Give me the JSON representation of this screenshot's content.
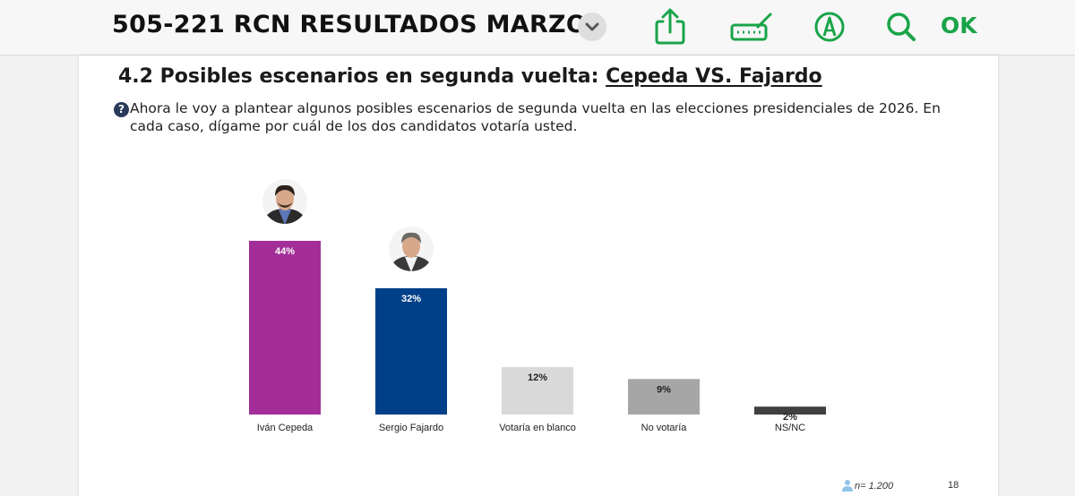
{
  "toolbar": {
    "title": "505-221 RCN RESULTADOS MARZO",
    "icons": [
      "chevron-down-icon",
      "share-icon",
      "keyboard-pencil-icon",
      "markup-pen-icon",
      "search-icon"
    ],
    "ok_label": "OK",
    "accent_color": "#1aa449"
  },
  "slide": {
    "title_prefix": "4.2 Posibles escenarios en segunda vuelta: ",
    "title_highlight": "Cepeda VS. Fajardo",
    "question_icon": "question-circle-icon",
    "question": "Ahora le voy a plantear algunos posibles escenarios de segunda vuelta en las elecciones presidenciales de 2026. En cada caso, dígame por cuál de los dos candidatos votaría usted.",
    "sample_icon": "person-icon",
    "sample": "n= 1.200",
    "page_number": "18"
  },
  "chart_data": {
    "type": "bar",
    "title": "",
    "xlabel": "",
    "ylabel": "",
    "ylim": [
      0,
      44
    ],
    "grid": false,
    "categories": [
      "Iván Cepeda",
      "Sergio Fajardo",
      "Votaría en blanco",
      "No votaría",
      "NS/NC"
    ],
    "values": [
      44,
      32,
      12,
      9,
      2
    ],
    "data_labels": [
      "44%",
      "32%",
      "12%",
      "9%",
      "2%"
    ],
    "colors": [
      "#a32e98",
      "#004088",
      "#d9d9d9",
      "#a6a6a6",
      "#404040"
    ],
    "label_colors": [
      "#ffffff",
      "#ffffff",
      "#222222",
      "#222222",
      "#222222"
    ],
    "photos": [
      "candidate-photo-cepeda",
      "candidate-photo-fajardo",
      null,
      null,
      null
    ]
  }
}
